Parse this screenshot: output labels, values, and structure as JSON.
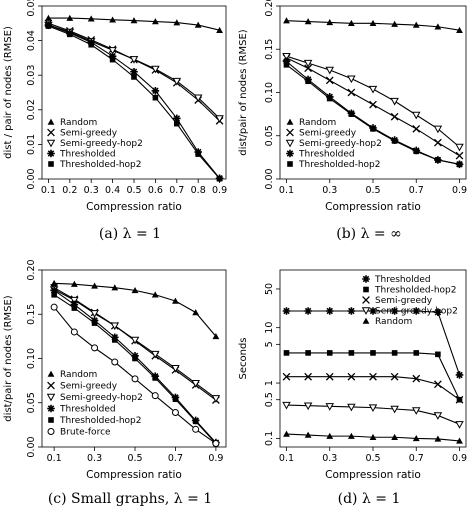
{
  "chart_data": [
    {
      "type": "line",
      "caption": "(a) λ = 1",
      "xlabel": "Compression ratio",
      "ylabel": "dist / pair of nodes (RMSE)",
      "x": [
        0.1,
        0.2,
        0.3,
        0.4,
        0.5,
        0.6,
        0.7,
        0.8,
        0.9
      ],
      "xticks": [
        0.1,
        0.2,
        0.3,
        0.4,
        0.5,
        0.6,
        0.7,
        0.8,
        0.9
      ],
      "xtick_labels": [
        "0.1",
        "0.2",
        "0.3",
        "0.4",
        "0.5",
        "0.6",
        "0.7",
        "0.8",
        "0.9"
      ],
      "xlim": [
        0.07,
        0.93
      ],
      "ylim": [
        0,
        0.05
      ],
      "yticks": [
        0.0,
        0.01,
        0.02,
        0.03,
        0.04,
        0.05
      ],
      "ytick_labels": [
        "0.00",
        "0.01",
        "0.02",
        "0.03",
        "0.04",
        "0.05"
      ],
      "legend_position": "bottom-left",
      "legend": [
        "Random",
        "Semi-greedy",
        "Semi-greedy-hop2",
        "Thresholded",
        "Thresholded-hop2"
      ],
      "series": [
        {
          "name": "Random",
          "marker": "triangle",
          "values": [
            0.0465,
            0.0465,
            0.0463,
            0.046,
            0.0458,
            0.0455,
            0.0452,
            0.0445,
            0.043
          ]
        },
        {
          "name": "Semi-greedy",
          "marker": "x",
          "values": [
            0.045,
            0.0428,
            0.0402,
            0.0375,
            0.0345,
            0.0315,
            0.0278,
            0.0228,
            0.0168
          ]
        },
        {
          "name": "Semi-greedy-hop2",
          "marker": "tri-down",
          "values": [
            0.0445,
            0.0425,
            0.0398,
            0.0372,
            0.0346,
            0.0318,
            0.0283,
            0.0235,
            0.0175
          ]
        },
        {
          "name": "Thresholded",
          "marker": "star",
          "values": [
            0.0445,
            0.0422,
            0.0395,
            0.0355,
            0.031,
            0.0255,
            0.0175,
            0.0078,
            0.0002
          ]
        },
        {
          "name": "Thresholded-hop2",
          "marker": "square",
          "values": [
            0.0442,
            0.0418,
            0.0388,
            0.0345,
            0.0295,
            0.0235,
            0.016,
            0.0072,
            0.0001
          ]
        }
      ]
    },
    {
      "type": "line",
      "caption": "(b) λ = ∞",
      "xlabel": "Compression ratio",
      "ylabel": "dist/pair of nodes (RMSE)",
      "x": [
        0.1,
        0.2,
        0.3,
        0.4,
        0.5,
        0.6,
        0.7,
        0.8,
        0.9
      ],
      "xticks": [
        0.1,
        0.3,
        0.5,
        0.7,
        0.9
      ],
      "xtick_labels": [
        "0.1",
        "0.3",
        "0.5",
        "0.7",
        "0.9"
      ],
      "xlim": [
        0.07,
        0.93
      ],
      "ylim": [
        0,
        0.2
      ],
      "yticks": [
        0.0,
        0.05,
        0.1,
        0.15,
        0.2
      ],
      "ytick_labels": [
        "0.00",
        "0.05",
        "0.10",
        "0.15",
        "0.20"
      ],
      "legend_position": "bottom-left",
      "legend": [
        "Random",
        "Semi-greedy",
        "Semi-greedy-hop2",
        "Thresholded",
        "Thresholded-hop2"
      ],
      "series": [
        {
          "name": "Random",
          "marker": "triangle",
          "values": [
            0.183,
            0.182,
            0.181,
            0.18,
            0.18,
            0.179,
            0.178,
            0.176,
            0.172
          ]
        },
        {
          "name": "Semi-greedy",
          "marker": "x",
          "values": [
            0.14,
            0.128,
            0.114,
            0.1,
            0.086,
            0.072,
            0.058,
            0.042,
            0.027
          ]
        },
        {
          "name": "Semi-greedy-hop2",
          "marker": "tri-down",
          "values": [
            0.142,
            0.134,
            0.126,
            0.116,
            0.104,
            0.09,
            0.074,
            0.058,
            0.037
          ]
        },
        {
          "name": "Thresholded",
          "marker": "star",
          "values": [
            0.136,
            0.115,
            0.095,
            0.076,
            0.059,
            0.045,
            0.033,
            0.022,
            0.017
          ]
        },
        {
          "name": "Thresholded-hop2",
          "marker": "square",
          "values": [
            0.132,
            0.113,
            0.093,
            0.075,
            0.058,
            0.044,
            0.032,
            0.022,
            0.017
          ]
        }
      ]
    },
    {
      "type": "line",
      "caption": "(c) Small graphs, λ = 1",
      "xlabel": "Compression ratio",
      "ylabel": "dist/pair of nodes (RMSE)",
      "x": [
        0.1,
        0.2,
        0.3,
        0.4,
        0.5,
        0.6,
        0.7,
        0.8,
        0.9
      ],
      "xticks": [
        0.1,
        0.3,
        0.5,
        0.7,
        0.9
      ],
      "xtick_labels": [
        "0.1",
        "0.3",
        "0.5",
        "0.7",
        "0.9"
      ],
      "xlim": [
        0.04,
        0.95
      ],
      "ylim": [
        0,
        0.2
      ],
      "yticks": [
        0.0,
        0.05,
        0.1,
        0.15,
        0.2
      ],
      "ytick_labels": [
        "0.00",
        "0.05",
        "0.10",
        "0.15",
        "0.20"
      ],
      "legend_position": "bottom-left",
      "legend": [
        "Random",
        "Semi-greedy",
        "Semi-greedy-hop2",
        "Thresholded",
        "Thresholded-hop2",
        "Brute-force"
      ],
      "series": [
        {
          "name": "Random",
          "marker": "triangle",
          "values": [
            0.185,
            0.184,
            0.182,
            0.18,
            0.177,
            0.172,
            0.165,
            0.152,
            0.125
          ]
        },
        {
          "name": "Semi-greedy",
          "marker": "x",
          "values": [
            0.18,
            0.167,
            0.152,
            0.137,
            0.12,
            0.103,
            0.087,
            0.07,
            0.053
          ]
        },
        {
          "name": "Semi-greedy-hop2",
          "marker": "tri-down",
          "values": [
            0.178,
            0.166,
            0.151,
            0.137,
            0.121,
            0.105,
            0.089,
            0.072,
            0.055
          ]
        },
        {
          "name": "Thresholded",
          "marker": "star",
          "values": [
            0.177,
            0.161,
            0.143,
            0.124,
            0.103,
            0.08,
            0.056,
            0.03,
            0.005
          ]
        },
        {
          "name": "Thresholded-hop2",
          "marker": "square",
          "values": [
            0.172,
            0.157,
            0.14,
            0.121,
            0.1,
            0.078,
            0.054,
            0.029,
            0.004
          ]
        },
        {
          "name": "Brute-force",
          "marker": "circle",
          "values": [
            0.158,
            0.13,
            0.112,
            0.096,
            0.077,
            0.058,
            0.039,
            0.02,
            0.004
          ]
        }
      ]
    },
    {
      "type": "line",
      "caption": "(d) λ = 1",
      "xlabel": "Compression ratio",
      "ylabel": "Seconds",
      "yscale": "log",
      "x": [
        0.1,
        0.2,
        0.3,
        0.4,
        0.5,
        0.6,
        0.7,
        0.8,
        0.9
      ],
      "xticks": [
        0.1,
        0.3,
        0.5,
        0.7,
        0.9
      ],
      "xtick_labels": [
        "0.1",
        "0.3",
        "0.5",
        "0.7",
        "0.9"
      ],
      "xlim": [
        0.07,
        0.93
      ],
      "ylim": [
        0.07,
        110
      ],
      "yticks": [
        0.1,
        0.5,
        1,
        5,
        10,
        50
      ],
      "ytick_labels": [
        "0.1",
        "0.5",
        "1",
        "5",
        "10",
        "50"
      ],
      "legend_position": "top-right",
      "legend": [
        "Thresholded",
        "Thresholded-hop2",
        "Semi-greedy",
        "Semi-greedy-hop2",
        "Random"
      ],
      "series": [
        {
          "name": "Thresholded",
          "marker": "star",
          "values": [
            20,
            20,
            20,
            20,
            20,
            20,
            20,
            19,
            1.4
          ]
        },
        {
          "name": "Thresholded-hop2",
          "marker": "square",
          "values": [
            3.5,
            3.5,
            3.5,
            3.5,
            3.5,
            3.5,
            3.5,
            3.3,
            0.5
          ]
        },
        {
          "name": "Semi-greedy",
          "marker": "x",
          "values": [
            1.3,
            1.3,
            1.3,
            1.3,
            1.3,
            1.3,
            1.2,
            0.95,
            0.5
          ]
        },
        {
          "name": "Semi-greedy-hop2",
          "marker": "tri-down",
          "values": [
            0.4,
            0.39,
            0.38,
            0.37,
            0.36,
            0.34,
            0.32,
            0.26,
            0.18
          ]
        },
        {
          "name": "Random",
          "marker": "triangle",
          "values": [
            0.12,
            0.115,
            0.11,
            0.11,
            0.105,
            0.105,
            0.1,
            0.098,
            0.09
          ]
        }
      ]
    }
  ]
}
